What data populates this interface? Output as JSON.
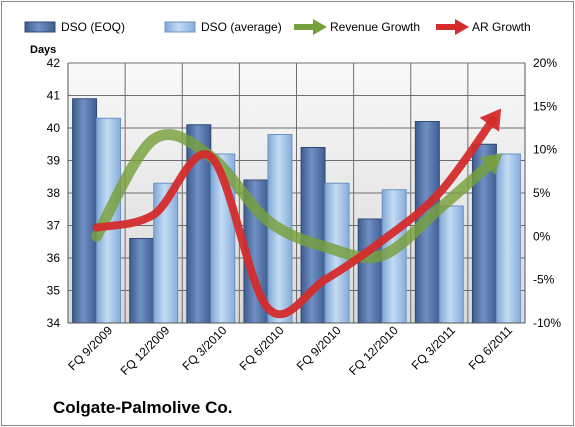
{
  "chart_data": {
    "type": "bar",
    "company": "Colgate-Palmolive Co.",
    "ylabel": "Days",
    "categories": [
      "FQ 9/2009",
      "FQ 12/2009",
      "FQ 3/2010",
      "FQ 6/2010",
      "FQ 9/2010",
      "FQ 12/2010",
      "FQ 3/2011",
      "FQ 6/2011"
    ],
    "ylim": [
      34,
      42
    ],
    "yticks": [
      "34",
      "35",
      "36",
      "37",
      "38",
      "39",
      "40",
      "41",
      "42"
    ],
    "y2lim": [
      -10,
      20
    ],
    "y2ticks": [
      "-10%",
      "-5%",
      "0%",
      "5%",
      "10%",
      "15%",
      "20%"
    ],
    "grid": true,
    "legend_position": "top",
    "series": [
      {
        "name": "DSO (EOQ)",
        "kind": "bar",
        "axis": "left",
        "color": "#4f6fa3",
        "values": [
          40.9,
          36.6,
          40.1,
          38.4,
          39.4,
          37.2,
          40.2,
          39.5
        ]
      },
      {
        "name": "DSO (average)",
        "kind": "bar",
        "axis": "left",
        "color": "#9ec1e8",
        "values": [
          40.3,
          38.3,
          39.2,
          39.8,
          38.3,
          38.1,
          37.6,
          39.2
        ]
      },
      {
        "name": "Revenue Growth",
        "kind": "arrow",
        "axis": "right",
        "color": "#77a03c",
        "values": [
          0,
          11.2,
          9.2,
          1.8,
          -1.2,
          -2.2,
          3.2,
          9
        ]
      },
      {
        "name": "AR Growth",
        "kind": "arrow",
        "axis": "right",
        "color": "#d42b2b",
        "values": [
          1,
          2.5,
          9.2,
          -8.3,
          -5,
          -0.5,
          5,
          14
        ]
      }
    ]
  }
}
